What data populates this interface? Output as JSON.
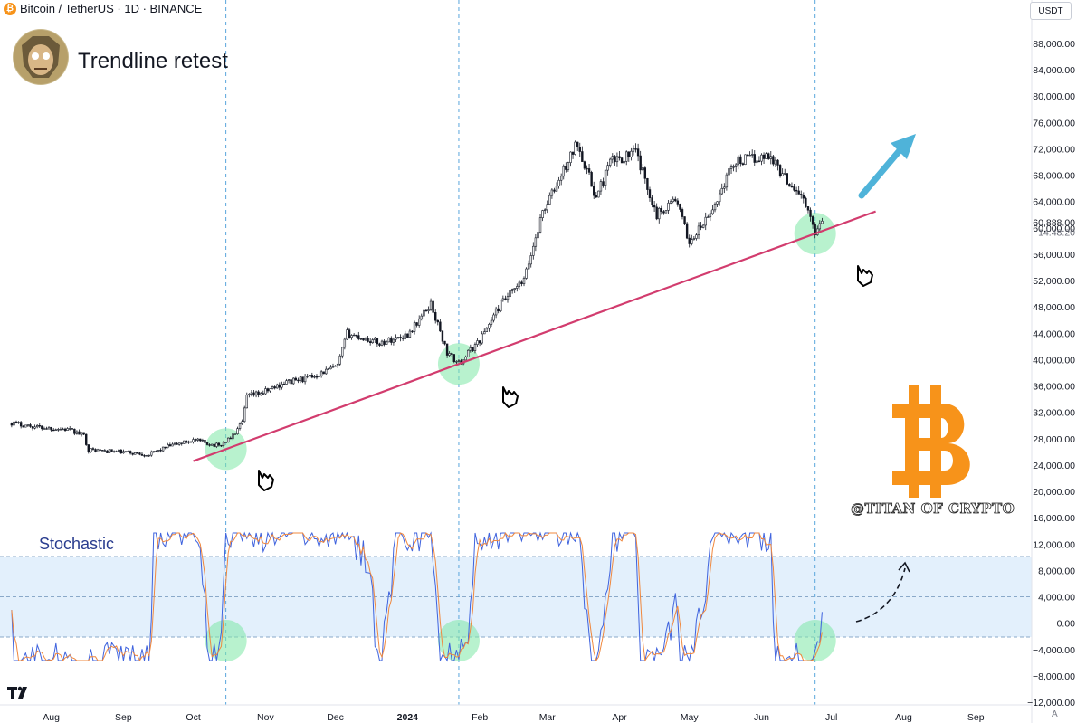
{
  "header": {
    "symbol_title": "Bitcoin / TetherUS · 1D · BINANCE",
    "coin_glyph": "₿",
    "currency_button": "USDT"
  },
  "idea": {
    "title": "Trendline retest",
    "watermark": "@TITAN OF CRYPTO",
    "avatar_icon": "titan-avatar-icon",
    "logo_icon": "bitcoin-logo-icon"
  },
  "indicator": {
    "name": "Stochastic",
    "band_upper": 80,
    "band_mid": 50,
    "band_lower": 20
  },
  "scale_button": "A",
  "colors": {
    "trendline": "#d23c6e",
    "arrow": "#4fb3d9",
    "highlight": "#7ee8a6",
    "stoch_k": "#3f63de",
    "stoch_d": "#f0883e",
    "band_fill": "#e3f0fc",
    "bitcoin_orange": "#f7931a",
    "guide": "#5aa6dc"
  },
  "chart_data": {
    "type": "candlestick",
    "price_axis": {
      "min": -12000,
      "max": 88000,
      "ticks": [
        "88,000.00",
        "84,000.00",
        "80,000.00",
        "76,000.00",
        "72,000.00",
        "68,000.00",
        "64,000.00",
        "60,000.00",
        "56,000.00",
        "52,000.00",
        "48,000.00",
        "44,000.00",
        "40,000.00",
        "36,000.00",
        "32,000.00",
        "28,000.00",
        "24,000.00",
        "20,000.00",
        "16,000.00",
        "12,000.00",
        "8,000.00",
        "4,000.00",
        "0.00",
        "−4,000.00",
        "−8,000.00",
        "−12,000.00"
      ],
      "last_price": "60,888.00",
      "countdown": "14:48:20"
    },
    "time_axis": {
      "ticks": [
        "Aug",
        "Sep",
        "Oct",
        "Nov",
        "Dec",
        "2024",
        "Feb",
        "Mar",
        "Apr",
        "May",
        "Jun",
        "Jul",
        "Aug",
        "Sep"
      ]
    },
    "price_path": [
      [
        "2023-07-15",
        30400
      ],
      [
        "2023-07-25",
        29800
      ],
      [
        "2023-08-08",
        29400
      ],
      [
        "2023-08-15",
        28500
      ],
      [
        "2023-08-17",
        26300
      ],
      [
        "2023-08-30",
        26000
      ],
      [
        "2023-09-12",
        25600
      ],
      [
        "2023-09-20",
        26800
      ],
      [
        "2023-10-01",
        27800
      ],
      [
        "2023-10-12",
        26900
      ],
      [
        "2023-10-18",
        28400
      ],
      [
        "2023-10-22",
        30400
      ],
      [
        "2023-10-24",
        34400
      ],
      [
        "2023-10-31",
        35000
      ],
      [
        "2023-11-09",
        36500
      ],
      [
        "2023-11-20",
        37300
      ],
      [
        "2023-12-02",
        39000
      ],
      [
        "2023-12-06",
        44000
      ],
      [
        "2023-12-20",
        42500
      ],
      [
        "2024-01-01",
        43800
      ],
      [
        "2024-01-08",
        47000
      ],
      [
        "2024-01-11",
        48500
      ],
      [
        "2024-01-18",
        41000
      ],
      [
        "2024-01-23",
        39400
      ],
      [
        "2024-02-01",
        43000
      ],
      [
        "2024-02-10",
        48500
      ],
      [
        "2024-02-20",
        52000
      ],
      [
        "2024-02-28",
        62500
      ],
      [
        "2024-03-05",
        66500
      ],
      [
        "2024-03-14",
        73000
      ],
      [
        "2024-03-22",
        64500
      ],
      [
        "2024-03-28",
        70000
      ],
      [
        "2024-04-08",
        71500
      ],
      [
        "2024-04-17",
        62000
      ],
      [
        "2024-04-25",
        64500
      ],
      [
        "2024-05-01",
        57800
      ],
      [
        "2024-05-10",
        62000
      ],
      [
        "2024-05-20",
        70000
      ],
      [
        "2024-06-05",
        71000
      ],
      [
        "2024-06-10",
        68000
      ],
      [
        "2024-06-18",
        65000
      ],
      [
        "2024-06-24",
        59500
      ],
      [
        "2024-06-27",
        61500
      ]
    ],
    "trendline": {
      "from": [
        "2023-10-01",
        24600
      ],
      "to": [
        "2024-07-20",
        62500
      ]
    },
    "retest_dates": [
      "2023-10-15",
      "2024-01-23",
      "2024-06-24"
    ],
    "projection": "up"
  }
}
